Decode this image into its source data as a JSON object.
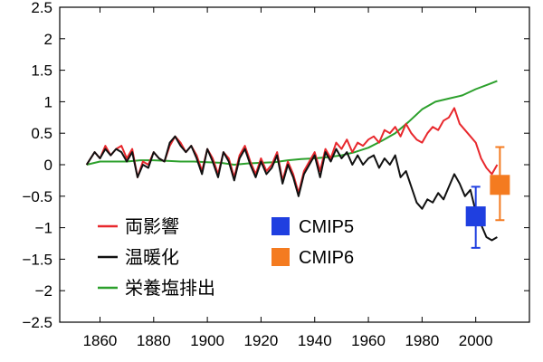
{
  "chart_data": {
    "type": "line",
    "title": "",
    "xlabel": "",
    "ylabel": "",
    "xlim": [
      1845,
      2020
    ],
    "ylim": [
      -2.5,
      2.5
    ],
    "x_ticks": [
      "1860",
      "1880",
      "1900",
      "1920",
      "1940",
      "1960",
      "1980",
      "2000"
    ],
    "y_ticks": [
      "2.5",
      "2",
      "1.5",
      "1",
      "0.5",
      "0",
      "−0.5",
      "−1",
      "−1.5",
      "−2",
      "−2.5"
    ],
    "grid": false,
    "legend_position": "bottom-left",
    "series": [
      {
        "name": "両影響",
        "color": "#e8282d",
        "x": [
          1855,
          1858,
          1860,
          1862,
          1864,
          1866,
          1868,
          1870,
          1872,
          1874,
          1876,
          1878,
          1880,
          1882,
          1884,
          1886,
          1888,
          1890,
          1892,
          1894,
          1896,
          1898,
          1900,
          1902,
          1904,
          1906,
          1908,
          1910,
          1912,
          1914,
          1916,
          1918,
          1920,
          1922,
          1924,
          1926,
          1928,
          1930,
          1932,
          1934,
          1936,
          1938,
          1940,
          1942,
          1944,
          1946,
          1948,
          1950,
          1952,
          1954,
          1956,
          1958,
          1960,
          1962,
          1964,
          1966,
          1968,
          1970,
          1972,
          1974,
          1976,
          1978,
          1980,
          1982,
          1984,
          1986,
          1988,
          1990,
          1992,
          1994,
          1996,
          1998,
          2000,
          2002,
          2004,
          2006,
          2008
        ],
        "values": [
          0.0,
          0.2,
          0.1,
          0.3,
          0.15,
          0.25,
          0.3,
          0.1,
          0.25,
          -0.2,
          0.05,
          0.0,
          0.2,
          0.1,
          0.05,
          0.3,
          0.45,
          0.35,
          0.2,
          0.3,
          0.15,
          -0.1,
          0.25,
          0.1,
          -0.15,
          0.2,
          0.1,
          -0.2,
          0.15,
          0.3,
          0.05,
          -0.15,
          0.1,
          -0.1,
          0.0,
          0.2,
          -0.25,
          0.05,
          -0.15,
          -0.45,
          -0.1,
          0.05,
          0.2,
          -0.1,
          0.25,
          0.1,
          0.35,
          0.25,
          0.4,
          0.2,
          0.35,
          0.3,
          0.4,
          0.45,
          0.35,
          0.55,
          0.5,
          0.6,
          0.45,
          0.65,
          0.5,
          0.4,
          0.35,
          0.5,
          0.6,
          0.55,
          0.7,
          0.75,
          0.9,
          0.65,
          0.55,
          0.45,
          0.35,
          0.1,
          -0.05,
          -0.15,
          0.0
        ]
      },
      {
        "name": "温暖化",
        "color": "#111111",
        "x": [
          1855,
          1858,
          1860,
          1862,
          1864,
          1866,
          1868,
          1870,
          1872,
          1874,
          1876,
          1878,
          1880,
          1882,
          1884,
          1886,
          1888,
          1890,
          1892,
          1894,
          1896,
          1898,
          1900,
          1902,
          1904,
          1906,
          1908,
          1910,
          1912,
          1914,
          1916,
          1918,
          1920,
          1922,
          1924,
          1926,
          1928,
          1930,
          1932,
          1934,
          1936,
          1938,
          1940,
          1942,
          1944,
          1946,
          1948,
          1950,
          1952,
          1954,
          1956,
          1958,
          1960,
          1962,
          1964,
          1966,
          1968,
          1970,
          1972,
          1974,
          1976,
          1978,
          1980,
          1982,
          1984,
          1986,
          1988,
          1990,
          1992,
          1994,
          1996,
          1998,
          2000,
          2002,
          2004,
          2006,
          2008
        ],
        "values": [
          0.0,
          0.2,
          0.1,
          0.25,
          0.15,
          0.25,
          0.2,
          0.05,
          0.2,
          -0.2,
          0.0,
          -0.05,
          0.2,
          0.1,
          0.05,
          0.35,
          0.45,
          0.3,
          0.2,
          0.3,
          0.1,
          -0.15,
          0.25,
          0.05,
          -0.2,
          0.2,
          0.05,
          -0.25,
          0.1,
          0.25,
          0.0,
          -0.2,
          0.05,
          -0.15,
          -0.05,
          0.15,
          -0.3,
          0.0,
          -0.2,
          -0.5,
          -0.15,
          0.0,
          0.15,
          -0.2,
          0.2,
          0.05,
          0.25,
          0.1,
          0.2,
          0.0,
          0.15,
          0.0,
          0.1,
          0.15,
          -0.05,
          0.1,
          0.0,
          0.15,
          -0.2,
          -0.1,
          -0.35,
          -0.6,
          -0.7,
          -0.55,
          -0.6,
          -0.45,
          -0.55,
          -0.35,
          -0.15,
          -0.3,
          -0.5,
          -0.4,
          -0.75,
          -0.95,
          -1.15,
          -1.2,
          -1.15
        ]
      },
      {
        "name": "栄養塩排出",
        "color": "#2ca02c",
        "x": [
          1855,
          1860,
          1865,
          1870,
          1875,
          1880,
          1885,
          1890,
          1895,
          1900,
          1905,
          1910,
          1915,
          1920,
          1925,
          1930,
          1935,
          1940,
          1945,
          1950,
          1955,
          1960,
          1965,
          1970,
          1975,
          1980,
          1985,
          1990,
          1995,
          2000,
          2005,
          2008
        ],
        "values": [
          0.0,
          0.05,
          0.05,
          0.05,
          0.07,
          0.07,
          0.06,
          0.05,
          0.05,
          0.04,
          0.03,
          0.0,
          0.02,
          0.03,
          0.04,
          0.07,
          0.09,
          0.1,
          0.12,
          0.15,
          0.2,
          0.27,
          0.38,
          0.5,
          0.68,
          0.88,
          1.0,
          1.05,
          1.1,
          1.2,
          1.28,
          1.33
        ]
      }
    ],
    "markers": [
      {
        "name": "CMIP5",
        "color": "#1f3fe0",
        "x": 2000,
        "y": -0.82,
        "err_low": -1.32,
        "err_high": -0.35
      },
      {
        "name": "CMIP6",
        "color": "#f47b20",
        "x": 2009,
        "y": -0.32,
        "err_low": -0.88,
        "err_high": 0.28
      }
    ]
  }
}
